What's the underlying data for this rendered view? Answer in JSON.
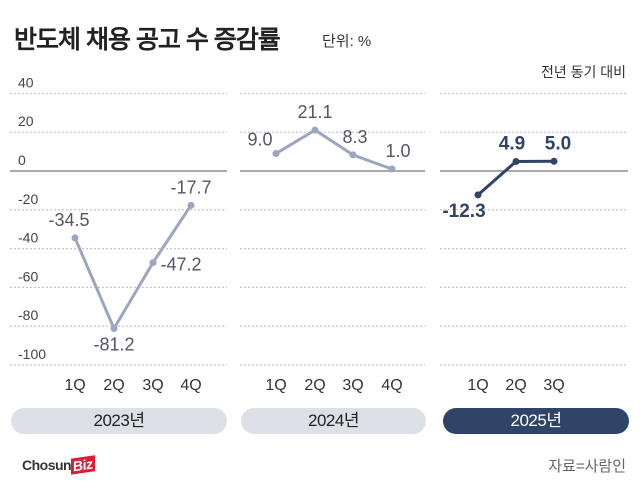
{
  "header": {
    "title": "반도체 채용 공고 수 증감률",
    "unit": "단위: %",
    "subtitle": "전년 동기 대비"
  },
  "chart_data": {
    "type": "line",
    "ylim": [
      -100,
      40
    ],
    "yticks": [
      "40",
      "20",
      "0",
      "-20",
      "-40",
      "-60",
      "-80",
      "-100"
    ],
    "ytick_values": [
      40,
      20,
      0,
      -20,
      -40,
      -60,
      -80,
      -100
    ],
    "grid": true,
    "panels": [
      {
        "label": "2023년",
        "categories": [
          "1Q",
          "2Q",
          "3Q",
          "4Q"
        ],
        "values": [
          -34.5,
          -81.2,
          -47.2,
          -17.7
        ],
        "labels": [
          "-34.5",
          "-81.2",
          "-47.2",
          "-17.7"
        ],
        "color": "#9aa7bf",
        "active": false
      },
      {
        "label": "2024년",
        "categories": [
          "1Q",
          "2Q",
          "3Q",
          "4Q"
        ],
        "values": [
          9.0,
          21.1,
          8.3,
          1.0
        ],
        "labels": [
          "9.0",
          "21.1",
          "8.3",
          "1.0"
        ],
        "color": "#9aa7bf",
        "active": false
      },
      {
        "label": "2025년",
        "categories": [
          "1Q",
          "2Q",
          "3Q"
        ],
        "values": [
          -12.3,
          4.9,
          5.0
        ],
        "labels": [
          "-12.3",
          "4.9",
          "5.0"
        ],
        "color": "#2f4466",
        "active": true
      }
    ]
  },
  "footer": {
    "logo_text": "Chosun",
    "logo_biz": "Biz",
    "source": "자료=사람인"
  }
}
